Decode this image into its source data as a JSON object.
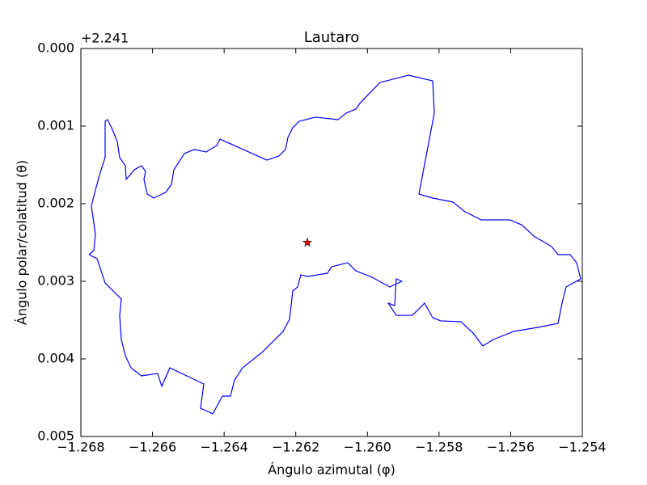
{
  "chart_data": {
    "type": "line",
    "title": "Lautaro",
    "x_label": "Ángulo azimutal (φ)",
    "y_label": "Ángulo polar/colatitud (θ)",
    "y_offset_text": "+2.241",
    "xlim": [
      -1.268,
      -1.254
    ],
    "xticks": [
      {
        "value": -1.268,
        "label": "−1.268"
      },
      {
        "value": -1.266,
        "label": "−1.266"
      },
      {
        "value": -1.264,
        "label": "−1.264"
      },
      {
        "value": -1.262,
        "label": "−1.262"
      },
      {
        "value": -1.26,
        "label": "−1.260"
      },
      {
        "value": -1.258,
        "label": "−1.258"
      },
      {
        "value": -1.256,
        "label": "−1.256"
      },
      {
        "value": -1.254,
        "label": "−1.254"
      }
    ],
    "ylim": [
      0,
      0.005
    ],
    "y_inverted": true,
    "yticks": [
      {
        "value": 0,
        "label": "0.000"
      },
      {
        "value": 0.001,
        "label": "0.001"
      },
      {
        "value": 0.002,
        "label": "0.002"
      },
      {
        "value": 0.003,
        "label": "0.003"
      },
      {
        "value": 0.004,
        "label": "0.004"
      },
      {
        "value": 0.005,
        "label": "0.005"
      }
    ],
    "series": [
      {
        "color": "#0000ff",
        "x": [
          -1.267774,
          -1.267639,
          -1.267594,
          -1.267706,
          -1.267594,
          -1.267435,
          -1.267323,
          -1.267323,
          -1.267255,
          -1.267142,
          -1.266984,
          -1.266916,
          -1.266758,
          -1.266735,
          -1.26651,
          -1.266306,
          -1.266194,
          -1.266239,
          -1.266148,
          -1.265968,
          -1.265629,
          -1.265471,
          -1.265403,
          -1.26511,
          -1.264839,
          -1.2645,
          -1.264206,
          -1.264116,
          -1.262806,
          -1.262468,
          -1.262287,
          -1.262219,
          -1.262084,
          -1.261903,
          -1.261452,
          -1.260819,
          -1.260594,
          -1.260323,
          -1.26021,
          -1.259871,
          -1.259645,
          -1.259194,
          -1.258855,
          -1.258177,
          -1.258132,
          -1.258561,
          -1.258177,
          -1.257613,
          -1.257274,
          -1.256823,
          -1.256032,
          -1.255694,
          -1.255355,
          -1.254858,
          -1.254677,
          -1.254339,
          -1.254158,
          -1.254045,
          -1.254452,
          -1.254565,
          -1.254677,
          -1.255242,
          -1.255919,
          -1.256484,
          -1.256777,
          -1.257048,
          -1.257387,
          -1.257952,
          -1.258177,
          -1.258403,
          -1.258742,
          -1.259194,
          -1.259419,
          -1.259239,
          -1.259194,
          -1.259035,
          -1.259374,
          -1.259871,
          -1.260323,
          -1.260548,
          -1.261,
          -1.261113,
          -1.261677,
          -1.261858,
          -1.261948,
          -1.262084,
          -1.262174,
          -1.262355,
          -1.262919,
          -1.263484,
          -1.26371,
          -1.263823,
          -1.264048,
          -1.264319,
          -1.264658,
          -1.264568,
          -1.265516,
          -1.265742,
          -1.265855,
          -1.266306,
          -1.2666,
          -1.266758,
          -1.266871,
          -1.266916,
          -1.266871,
          -1.267097,
          -1.267323,
          -1.267435,
          -1.267548,
          -1.267774
        ],
        "values": [
          0.002656,
          0.002604,
          0.002396,
          0.002031,
          0.001823,
          0.001563,
          0.001406,
          0.000938,
          0.000917,
          0.001021,
          0.001198,
          0.001406,
          0.00151,
          0.001688,
          0.001563,
          0.00151,
          0.001583,
          0.001688,
          0.001875,
          0.001927,
          0.001854,
          0.00175,
          0.001563,
          0.001354,
          0.001302,
          0.001333,
          0.00125,
          0.001167,
          0.001438,
          0.001385,
          0.001302,
          0.001146,
          0.001021,
          0.000938,
          0.000885,
          0.000917,
          0.000833,
          0.000781,
          0.000708,
          0.000542,
          0.000438,
          0.000385,
          0.000344,
          0.000417,
          0.000833,
          0.001875,
          0.001927,
          0.001979,
          0.002104,
          0.002208,
          0.002208,
          0.002271,
          0.002417,
          0.002552,
          0.002656,
          0.002656,
          0.00276,
          0.002969,
          0.003073,
          0.003281,
          0.003542,
          0.003594,
          0.003646,
          0.00375,
          0.003833,
          0.003667,
          0.003521,
          0.00351,
          0.003469,
          0.003281,
          0.003438,
          0.003438,
          0.003281,
          0.003313,
          0.002969,
          0.003,
          0.003073,
          0.002948,
          0.002865,
          0.00276,
          0.002813,
          0.002896,
          0.002938,
          0.002917,
          0.003073,
          0.003125,
          0.00349,
          0.003646,
          0.003906,
          0.004115,
          0.004271,
          0.004479,
          0.004479,
          0.004708,
          0.004635,
          0.004323,
          0.004115,
          0.004354,
          0.004188,
          0.004219,
          0.004115,
          0.003958,
          0.00375,
          0.003438,
          0.003229,
          0.003125,
          0.003021,
          0.002865,
          0.002708,
          0.002656
        ]
      },
      {
        "color": "#ff0000",
        "marker": "star",
        "x": [
          -1.261677
        ],
        "values": [
          0.0025
        ]
      }
    ]
  }
}
